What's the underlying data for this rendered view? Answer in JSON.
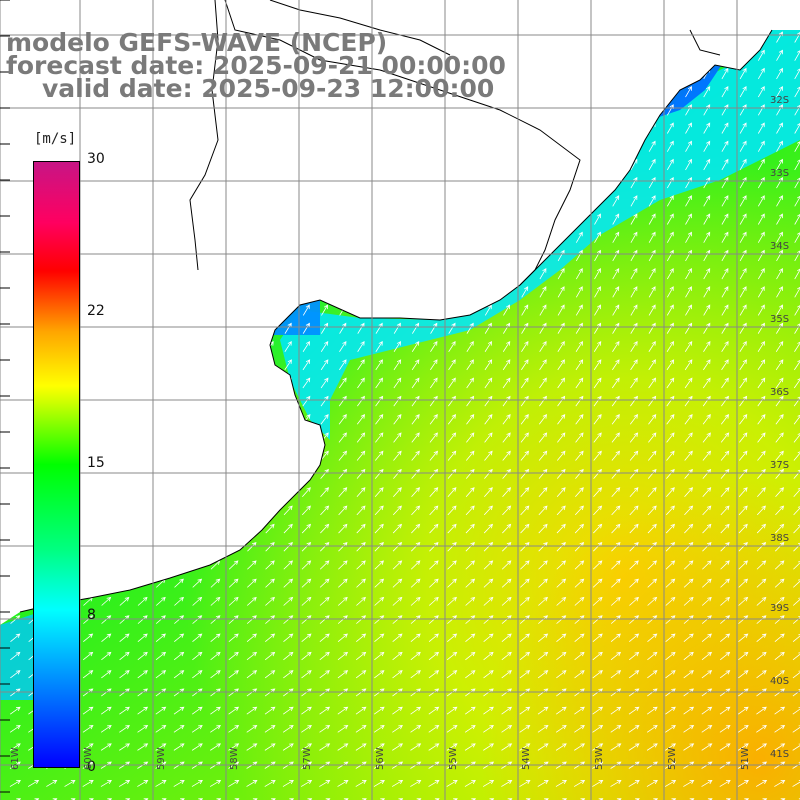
{
  "header": {
    "title": "modelo GEFS-WAVE (NCEP)",
    "forecast": "forecast date: 2025-09-21 00:00:00",
    "valid": "valid date: 2025-09-23 12:00:00"
  },
  "colorbar": {
    "units": "[m/s]",
    "ticks": [
      "30",
      "22",
      "15",
      "8",
      "0"
    ],
    "tick_values": [
      30,
      22,
      15,
      8,
      0
    ],
    "min": 0,
    "max": 30,
    "colors": [
      "#0000ff",
      "#0080ff",
      "#00ffff",
      "#00ff80",
      "#00ff00",
      "#c8ff00",
      "#ffff00",
      "#ffa500",
      "#ff0000",
      "#c71585"
    ]
  },
  "map": {
    "lat_labels": [
      "32S",
      "33S",
      "34S",
      "35S",
      "36S",
      "37S",
      "38S",
      "39S",
      "40S",
      "41S"
    ],
    "lon_labels": [
      "61W",
      "60W",
      "59W",
      "58W",
      "57W",
      "56W",
      "55W",
      "54W",
      "53W",
      "52W",
      "51W"
    ],
    "land_color": "#ffffff",
    "grid_color": "#888888",
    "arrow_color": "#ffffff"
  }
}
